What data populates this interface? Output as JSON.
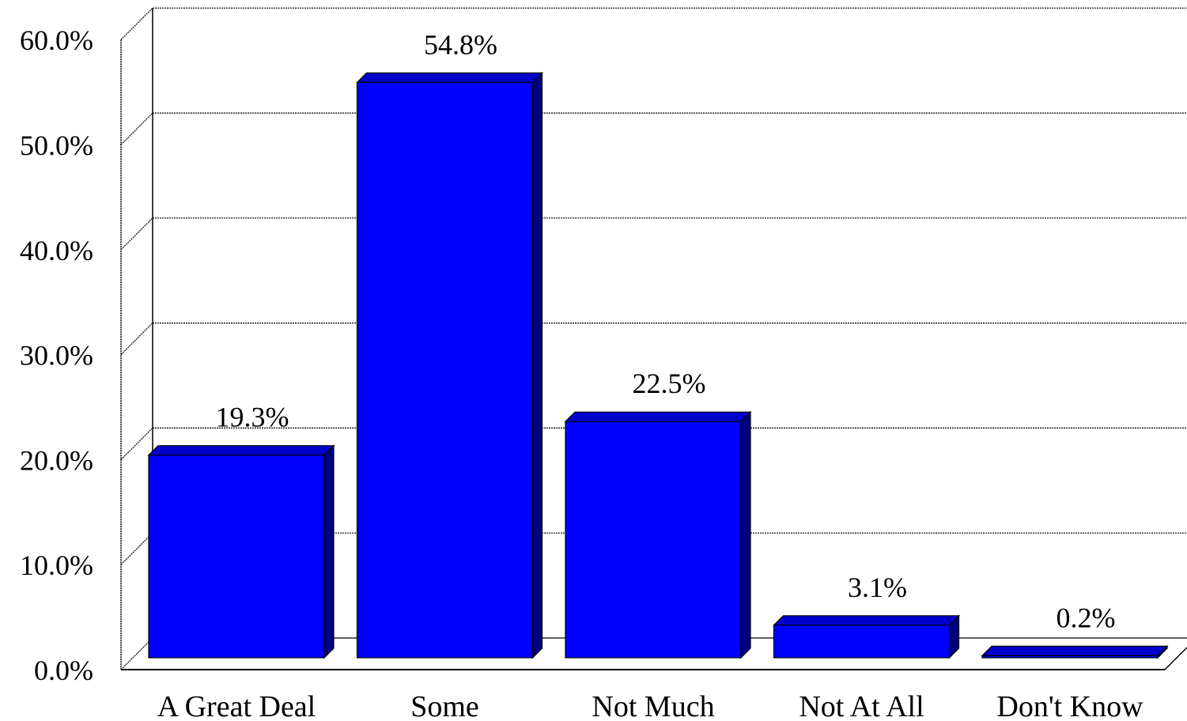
{
  "chart_data": {
    "type": "bar",
    "title": "",
    "xlabel": "",
    "ylabel": "",
    "categories": [
      "A Great Deal",
      "Some",
      "Not Much",
      "Not At All",
      "Don't Know"
    ],
    "values": [
      19.3,
      54.8,
      22.5,
      3.1,
      0.2
    ],
    "data_labels": [
      "19.3%",
      "54.8%",
      "22.5%",
      "3.1%",
      "0.2%"
    ],
    "ylim": [
      0,
      60
    ],
    "yticks": [
      0,
      10,
      20,
      30,
      40,
      50,
      60
    ],
    "ytick_labels": [
      "0.0%",
      "10.0%",
      "20.0%",
      "30.0%",
      "40.0%",
      "50.0%",
      "60.0%"
    ],
    "grid": true,
    "style": "3d",
    "colors": {
      "bar_front": "#0000ff",
      "bar_top": "#0000cc",
      "bar_side": "#000080",
      "outline": "#000000",
      "grid": "#000000"
    }
  }
}
